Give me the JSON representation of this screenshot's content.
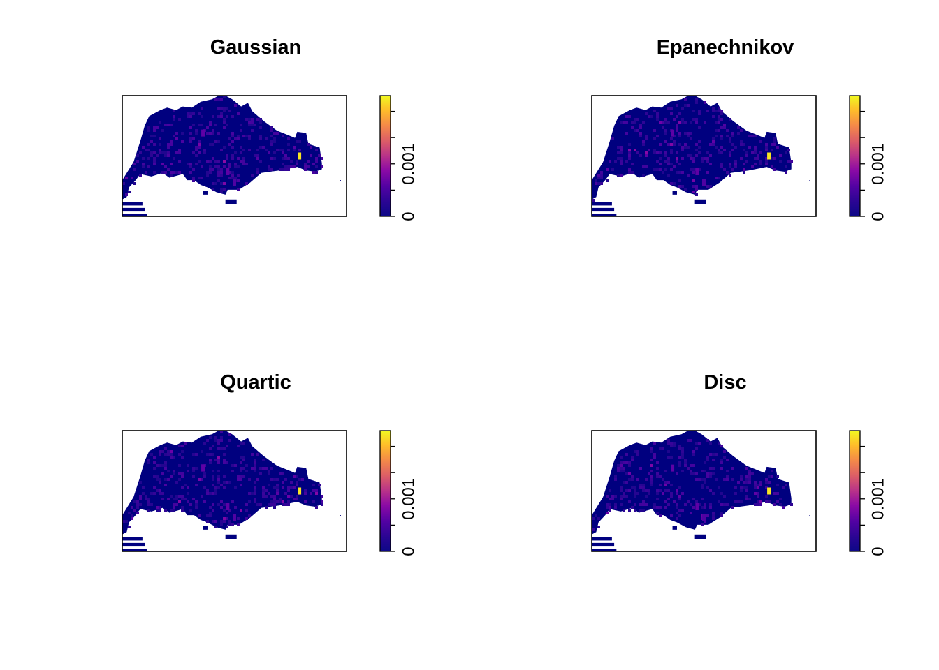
{
  "chart_data": [
    {
      "type": "heatmap",
      "title": "Gaussian",
      "xlabel": "",
      "ylabel": "",
      "legend": {
        "position": "right",
        "range": [
          0,
          0.0023
        ],
        "ticks": [
          0,
          0.0005,
          0.001,
          0.0015,
          0.002
        ],
        "tick_labels": [
          "0",
          "",
          "0.001",
          "",
          ""
        ]
      },
      "hotspots": [
        {
          "u": 0.79,
          "v": 0.5,
          "value": 0.0022
        },
        {
          "u": 0.36,
          "v": 0.31,
          "value": 0.0006
        },
        {
          "u": 0.47,
          "v": 0.63,
          "value": 0.0006
        },
        {
          "u": 0.5,
          "v": 0.72,
          "value": 0.0005
        }
      ]
    },
    {
      "type": "heatmap",
      "title": "Epanechnikov",
      "xlabel": "",
      "ylabel": "",
      "legend": {
        "position": "right",
        "range": [
          0,
          0.0023
        ],
        "ticks": [
          0,
          0.0005,
          0.001,
          0.0015,
          0.002
        ],
        "tick_labels": [
          "0",
          "",
          "0.001",
          "",
          ""
        ]
      },
      "hotspots": [
        {
          "u": 0.79,
          "v": 0.5,
          "value": 0.0022
        },
        {
          "u": 0.36,
          "v": 0.31,
          "value": 0.0006
        },
        {
          "u": 0.47,
          "v": 0.63,
          "value": 0.0006
        },
        {
          "u": 0.5,
          "v": 0.72,
          "value": 0.0005
        }
      ]
    },
    {
      "type": "heatmap",
      "title": "Quartic",
      "xlabel": "",
      "ylabel": "",
      "legend": {
        "position": "right",
        "range": [
          0,
          0.0023
        ],
        "ticks": [
          0,
          0.0005,
          0.001,
          0.0015,
          0.002
        ],
        "tick_labels": [
          "0",
          "",
          "0.001",
          "",
          ""
        ]
      },
      "hotspots": [
        {
          "u": 0.79,
          "v": 0.5,
          "value": 0.0022
        },
        {
          "u": 0.36,
          "v": 0.31,
          "value": 0.0006
        },
        {
          "u": 0.47,
          "v": 0.63,
          "value": 0.0006
        },
        {
          "u": 0.5,
          "v": 0.72,
          "value": 0.0005
        }
      ]
    },
    {
      "type": "heatmap",
      "title": "Disc",
      "xlabel": "",
      "ylabel": "",
      "legend": {
        "position": "right",
        "range": [
          0,
          0.0023
        ],
        "ticks": [
          0,
          0.0005,
          0.001,
          0.0015,
          0.002
        ],
        "tick_labels": [
          "0",
          "",
          "0.001",
          "",
          ""
        ]
      },
      "hotspots": [
        {
          "u": 0.79,
          "v": 0.5,
          "value": 0.0022
        },
        {
          "u": 0.36,
          "v": 0.31,
          "value": 0.0006
        },
        {
          "u": 0.47,
          "v": 0.63,
          "value": 0.0006
        },
        {
          "u": 0.5,
          "v": 0.72,
          "value": 0.0005
        }
      ]
    }
  ],
  "colors": {
    "background": "#ffffff",
    "base": "#00007f",
    "palette": [
      "#0d0887",
      "#2a0593",
      "#4b03a1",
      "#6a00a8",
      "#8b0aa5",
      "#b12a90",
      "#d1495b",
      "#ed7953",
      "#fb9f3a",
      "#fdca26",
      "#f0f921"
    ]
  }
}
